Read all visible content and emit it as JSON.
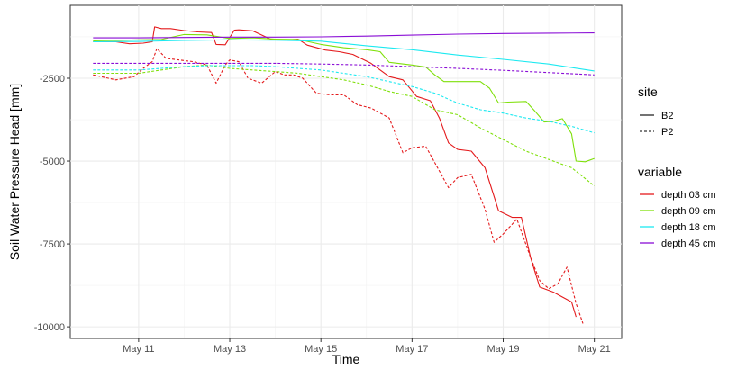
{
  "chart_data": {
    "type": "line",
    "xlabel": "Time",
    "ylabel": "Soil Water Pressure Head [mm]",
    "x_ticks": [
      "May 11",
      "May 13",
      "May 15",
      "May 17",
      "May 19",
      "May 21"
    ],
    "x_tick_days": [
      11,
      13,
      15,
      17,
      19,
      21
    ],
    "xlim": [
      9.5,
      21.6
    ],
    "y_ticks": [
      -2500,
      -5000,
      -7500,
      -10000
    ],
    "y_tick_labels": [
      "-2500",
      "-5000",
      "-7500",
      "-10000"
    ],
    "ylim": [
      -10350,
      -300
    ],
    "grid": true,
    "legend_placement": "right",
    "legend": {
      "site_title": "site",
      "site_entries": [
        {
          "label": "B2",
          "dash": "solid"
        },
        {
          "label": "P2",
          "dash": "dashed"
        }
      ],
      "variable_title": "variable",
      "variable_entries": [
        {
          "label": "depth 03 cm",
          "color": "#e41a1c"
        },
        {
          "label": "depth 09 cm",
          "color": "#7fe00a"
        },
        {
          "label": "depth 18 cm",
          "color": "#1de9f0"
        },
        {
          "label": "depth 45 cm",
          "color": "#8a0ed6"
        }
      ]
    },
    "series": [
      {
        "site": "B2",
        "variable": "depth 03 cm",
        "color": "#e41a1c",
        "dash": "solid",
        "x": [
          10,
          10.5,
          10.8,
          11.1,
          11.3,
          11.35,
          11.5,
          11.7,
          12,
          12.3,
          12.6,
          12.7,
          12.9,
          13.1,
          13.2,
          13.5,
          13.9,
          14.3,
          14.5,
          14.7,
          15.1,
          15.4,
          15.7,
          16.1,
          16.5,
          16.8,
          17.1,
          17.4,
          17.6,
          17.8,
          18.0,
          18.3,
          18.6,
          18.9,
          19.2,
          19.4,
          19.6,
          19.8,
          20.1,
          20.3,
          20.5,
          20.6
        ],
        "y": [
          -1400,
          -1400,
          -1460,
          -1440,
          -1400,
          -950,
          -1000,
          -1000,
          -1060,
          -1100,
          -1120,
          -1480,
          -1490,
          -1050,
          -1040,
          -1070,
          -1320,
          -1340,
          -1320,
          -1500,
          -1650,
          -1700,
          -1780,
          -2050,
          -2450,
          -2550,
          -3050,
          -3180,
          -3700,
          -4450,
          -4650,
          -4700,
          -5200,
          -6500,
          -6700,
          -6700,
          -7900,
          -8800,
          -8950,
          -9100,
          -9250,
          -9700
        ]
      },
      {
        "site": "B2",
        "variable": "depth 09 cm",
        "color": "#7fe00a",
        "dash": "solid",
        "x": [
          10,
          10.5,
          11.0,
          11.5,
          12.0,
          12.5,
          13.0,
          13.5,
          14.0,
          14.5,
          15.0,
          15.5,
          16.0,
          16.3,
          16.5,
          17.0,
          17.3,
          17.5,
          17.7,
          18.0,
          18.5,
          18.7,
          18.9,
          19.1,
          19.5,
          19.7,
          19.9,
          20.1,
          20.3,
          20.5,
          20.6,
          20.8,
          21.0
        ],
        "y": [
          -1370,
          -1360,
          -1340,
          -1330,
          -1180,
          -1190,
          -1300,
          -1280,
          -1320,
          -1330,
          -1480,
          -1580,
          -1640,
          -1700,
          -2020,
          -2100,
          -2160,
          -2400,
          -2600,
          -2600,
          -2600,
          -2800,
          -3250,
          -3220,
          -3200,
          -3500,
          -3820,
          -3800,
          -3720,
          -4180,
          -5000,
          -5020,
          -4920
        ]
      },
      {
        "site": "B2",
        "variable": "depth 18 cm",
        "color": "#1de9f0",
        "dash": "solid",
        "x": [
          10,
          11,
          12,
          13,
          14,
          15,
          16,
          17,
          18,
          19,
          20,
          21
        ],
        "y": [
          -1400,
          -1390,
          -1360,
          -1340,
          -1350,
          -1380,
          -1520,
          -1640,
          -1800,
          -1930,
          -2070,
          -2280
        ]
      },
      {
        "site": "B2",
        "variable": "depth 45 cm",
        "color": "#8a0ed6",
        "dash": "solid",
        "x": [
          10,
          11,
          12,
          13,
          14,
          15,
          16,
          17,
          18,
          19,
          20,
          21
        ],
        "y": [
          -1280,
          -1280,
          -1270,
          -1260,
          -1260,
          -1250,
          -1230,
          -1200,
          -1170,
          -1150,
          -1140,
          -1130
        ]
      },
      {
        "site": "P2",
        "variable": "depth 03 cm",
        "color": "#e41a1c",
        "dash": "dashed",
        "x": [
          10,
          10.5,
          10.9,
          11.1,
          11.3,
          11.4,
          11.6,
          11.9,
          12.2,
          12.5,
          12.7,
          12.9,
          13.0,
          13.2,
          13.4,
          13.7,
          14.0,
          14.2,
          14.4,
          14.6,
          14.9,
          15.2,
          15.5,
          15.8,
          16.1,
          16.5,
          16.8,
          17.0,
          17.3,
          17.6,
          17.8,
          18.0,
          18.3,
          18.6,
          18.8,
          19.0,
          19.3,
          19.6,
          19.8,
          20.0,
          20.2,
          20.4,
          20.6,
          20.75
        ],
        "y": [
          -2400,
          -2550,
          -2450,
          -2200,
          -2000,
          -1600,
          -1900,
          -1950,
          -2000,
          -2100,
          -2650,
          -2100,
          -1950,
          -2000,
          -2500,
          -2650,
          -2300,
          -2400,
          -2400,
          -2500,
          -2950,
          -3000,
          -3000,
          -3300,
          -3400,
          -3700,
          -4750,
          -4600,
          -4550,
          -5300,
          -5800,
          -5500,
          -5400,
          -6450,
          -7450,
          -7200,
          -6750,
          -7900,
          -8600,
          -8850,
          -8700,
          -8200,
          -9300,
          -9900
        ]
      },
      {
        "site": "P2",
        "variable": "depth 09 cm",
        "color": "#7fe00a",
        "dash": "dashed",
        "x": [
          10,
          10.5,
          11,
          11.5,
          12,
          12.5,
          13,
          13.5,
          14,
          14.5,
          15,
          15.5,
          16,
          16.5,
          17,
          17.5,
          18,
          18.5,
          19,
          19.5,
          20,
          20.5,
          21
        ],
        "y": [
          -2350,
          -2350,
          -2350,
          -2250,
          -2150,
          -2100,
          -2200,
          -2250,
          -2300,
          -2350,
          -2450,
          -2550,
          -2700,
          -2900,
          -3050,
          -3450,
          -3600,
          -4000,
          -4350,
          -4700,
          -4950,
          -5200,
          -5750
        ]
      },
      {
        "site": "P2",
        "variable": "depth 18 cm",
        "color": "#1de9f0",
        "dash": "dashed",
        "x": [
          10,
          10.5,
          11,
          11.5,
          12,
          12.5,
          13,
          13.5,
          14,
          14.5,
          15,
          15.5,
          16,
          16.5,
          17,
          17.5,
          18,
          18.5,
          19,
          19.5,
          20,
          20.5,
          21
        ],
        "y": [
          -2250,
          -2250,
          -2250,
          -2200,
          -2150,
          -2120,
          -2120,
          -2120,
          -2150,
          -2200,
          -2250,
          -2350,
          -2450,
          -2600,
          -2750,
          -2950,
          -3250,
          -3450,
          -3550,
          -3700,
          -3800,
          -3950,
          -4150
        ]
      },
      {
        "site": "P2",
        "variable": "depth 45 cm",
        "color": "#8a0ed6",
        "dash": "dashed",
        "x": [
          10,
          11,
          12,
          13,
          14,
          15,
          16,
          17,
          18,
          19,
          20,
          21
        ],
        "y": [
          -2050,
          -2050,
          -2050,
          -2050,
          -2050,
          -2070,
          -2100,
          -2150,
          -2200,
          -2260,
          -2330,
          -2400
        ]
      }
    ]
  }
}
